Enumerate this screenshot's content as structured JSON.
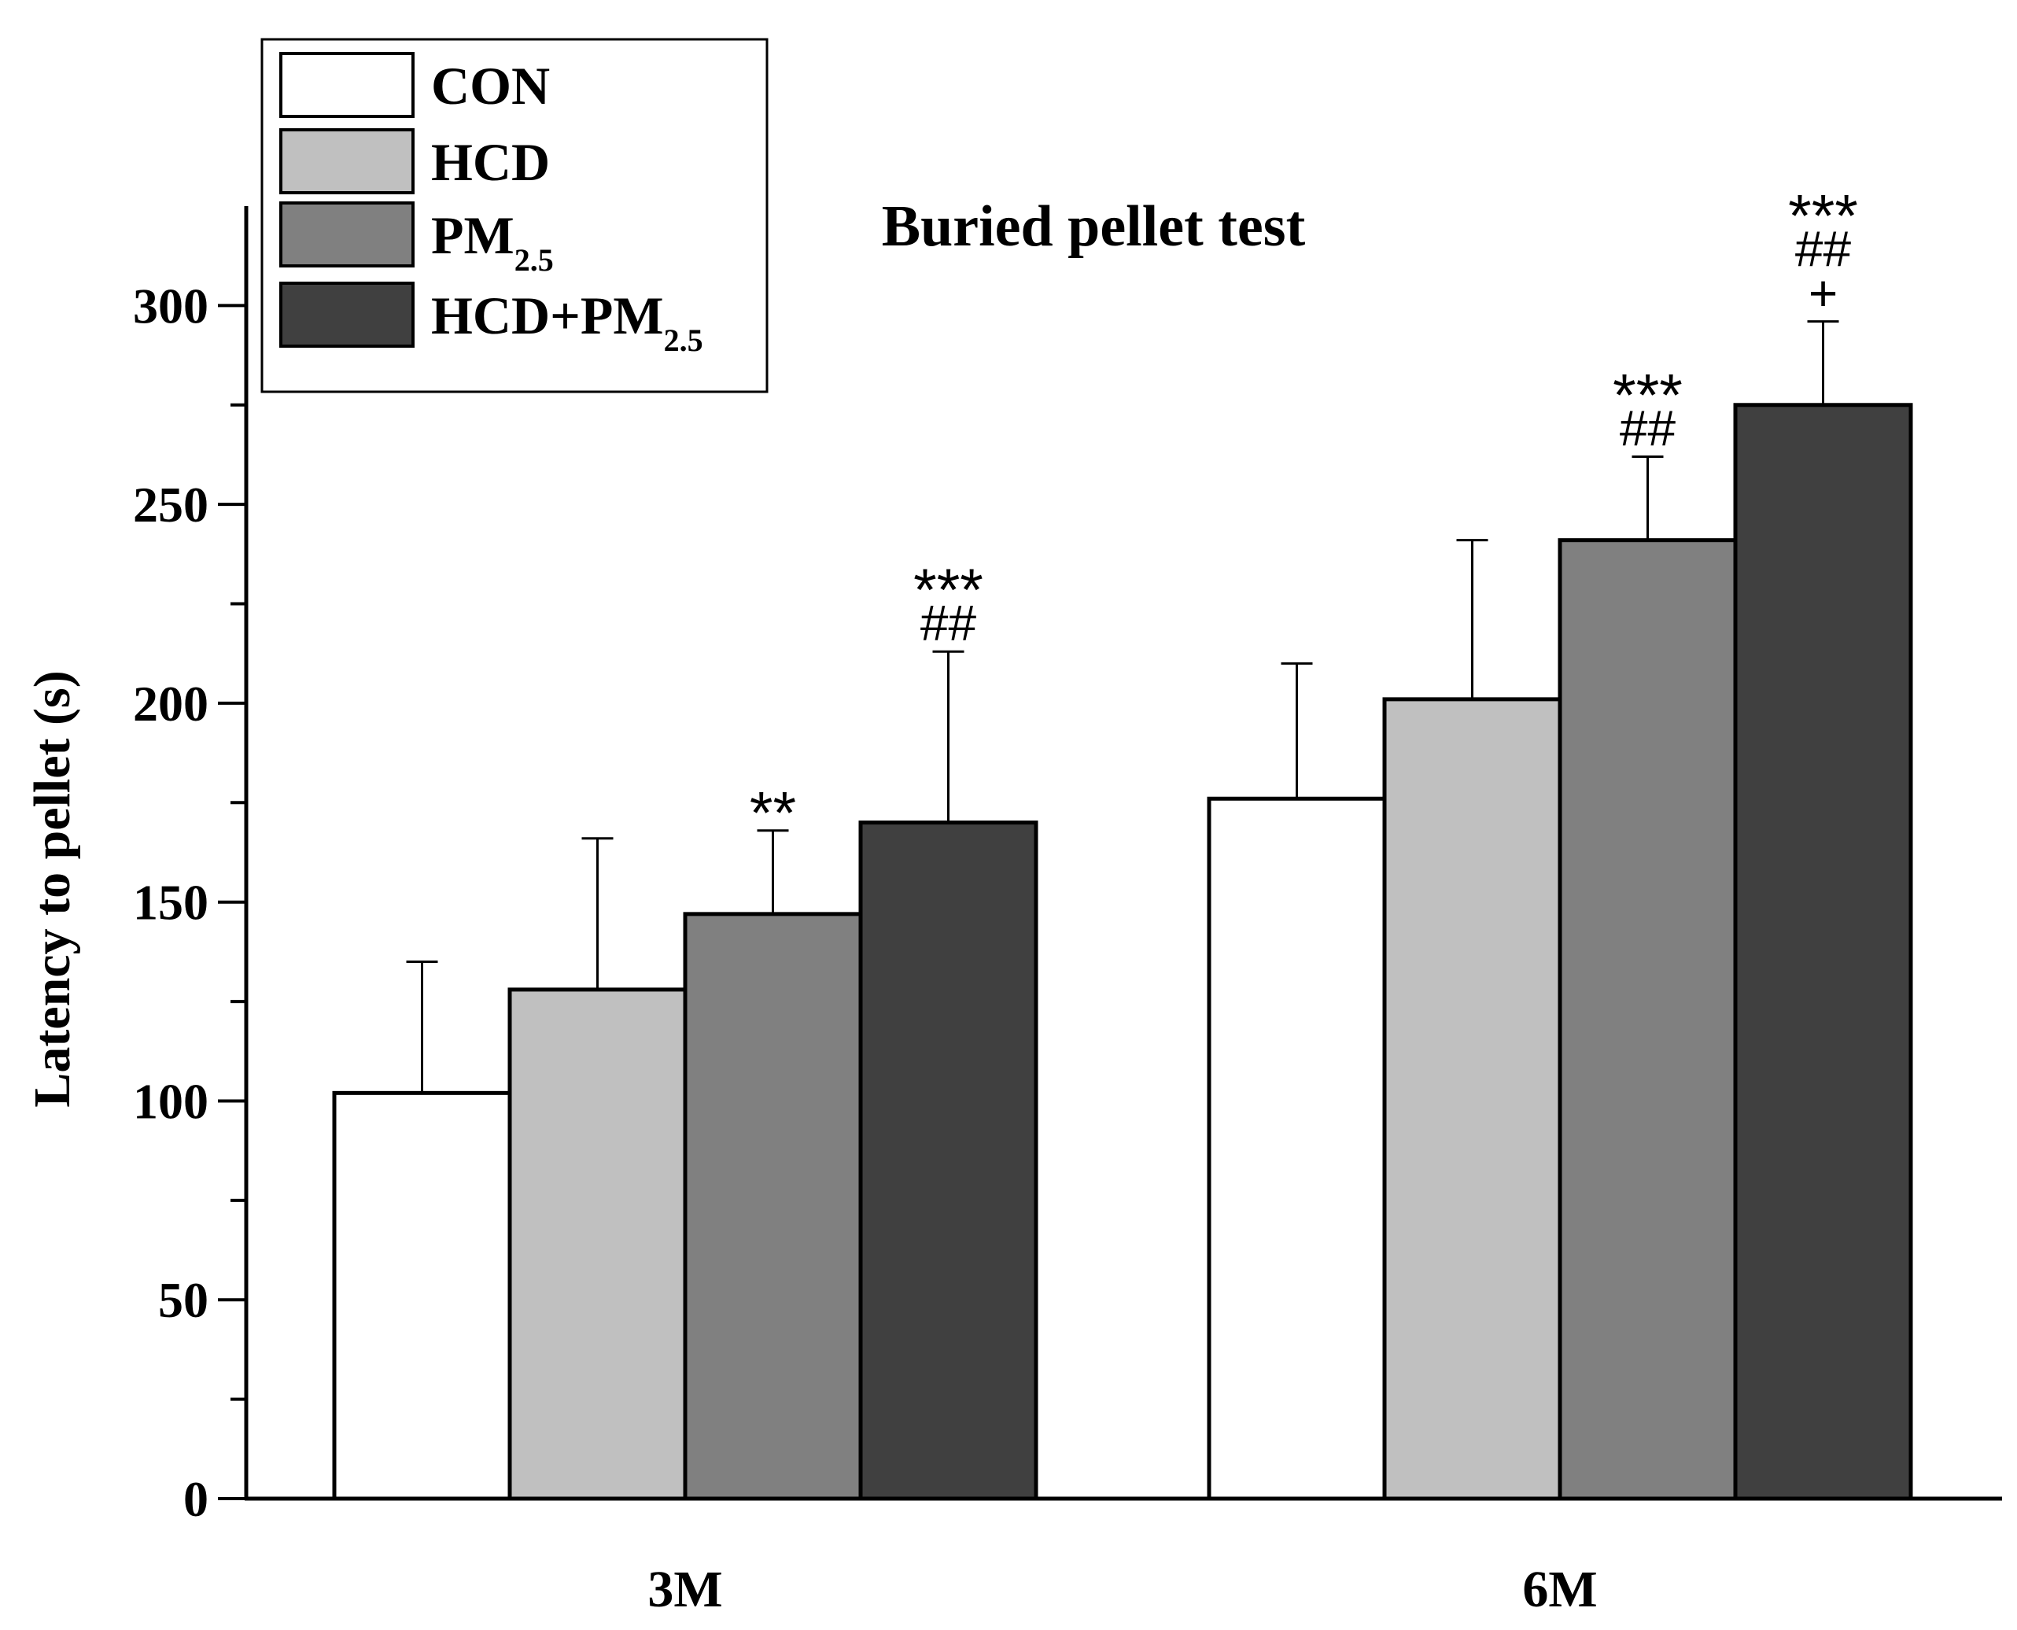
{
  "chart_data": {
    "type": "bar",
    "title": "Buried pellet test",
    "xlabel": "",
    "ylabel": "Latency to pellet (s)",
    "ylim": [
      0,
      325
    ],
    "yticks": [
      0,
      50,
      100,
      150,
      200,
      250,
      300
    ],
    "grid": false,
    "legend_position": "top-left",
    "categories": [
      "3M",
      "6M"
    ],
    "series": [
      {
        "name": "CON",
        "legend_main": "CON",
        "legend_sub": "",
        "color": "#ffffff",
        "values": [
          102,
          176
        ],
        "errors": [
          33,
          34
        ],
        "annotations": [
          [],
          []
        ]
      },
      {
        "name": "HCD",
        "legend_main": "HCD",
        "legend_sub": "",
        "color": "#c0c0c0",
        "values": [
          128,
          201
        ],
        "errors": [
          38,
          40
        ],
        "annotations": [
          [],
          []
        ]
      },
      {
        "name": "PM2.5",
        "legend_main": "PM",
        "legend_sub": "2.5",
        "color": "#808080",
        "values": [
          147,
          241
        ],
        "errors": [
          21,
          21
        ],
        "annotations": [
          [
            "**"
          ],
          [
            "***",
            "##"
          ]
        ]
      },
      {
        "name": "HCD+PM2.5",
        "legend_main": "HCD+PM",
        "legend_sub": "2.5",
        "color": "#404040",
        "values": [
          170,
          275
        ],
        "errors": [
          43,
          21
        ],
        "annotations": [
          [
            "***",
            "##"
          ],
          [
            "***",
            "##",
            "+"
          ]
        ]
      }
    ]
  }
}
